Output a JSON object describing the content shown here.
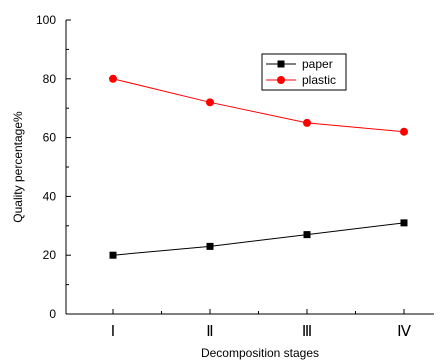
{
  "chart_data": {
    "type": "line",
    "categories": [
      "Ⅰ",
      "Ⅱ",
      "Ⅲ",
      "Ⅳ"
    ],
    "series": [
      {
        "name": "paper",
        "values": [
          20,
          23,
          27,
          31
        ],
        "color": "#000000",
        "marker": "square"
      },
      {
        "name": "plastic",
        "values": [
          80,
          72,
          65,
          62
        ],
        "color": "#ff0000",
        "marker": "circle"
      }
    ],
    "xlabel": "Decomposition stages",
    "ylabel": "Quality percentage%",
    "ylim": [
      0,
      100
    ],
    "yticks": [
      0,
      20,
      40,
      60,
      80,
      100
    ],
    "grid": false,
    "legend_position": "top-right"
  }
}
